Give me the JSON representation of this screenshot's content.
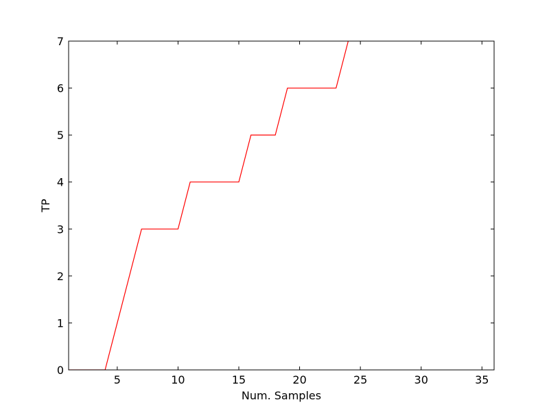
{
  "chart_data": {
    "type": "line",
    "title": "",
    "xlabel": "Num. Samples",
    "ylabel": "TP",
    "xlim": [
      1,
      36
    ],
    "ylim": [
      0,
      7
    ],
    "xticks": [
      5,
      10,
      15,
      20,
      25,
      30,
      35
    ],
    "yticks": [
      0,
      1,
      2,
      3,
      4,
      5,
      6,
      7
    ],
    "grid": false,
    "legend": "none",
    "series": [
      {
        "color": "#ff0000",
        "x": [
          1,
          2,
          3,
          4,
          5,
          6,
          7,
          8,
          9,
          10,
          11,
          12,
          13,
          14,
          15,
          16,
          17,
          18,
          19,
          20,
          21,
          22,
          23,
          24
        ],
        "y": [
          0,
          0,
          0,
          0,
          1,
          2,
          3,
          3,
          3,
          3,
          4,
          4,
          4,
          4,
          4,
          5,
          5,
          5,
          6,
          6,
          6,
          6,
          6,
          7
        ]
      }
    ]
  }
}
